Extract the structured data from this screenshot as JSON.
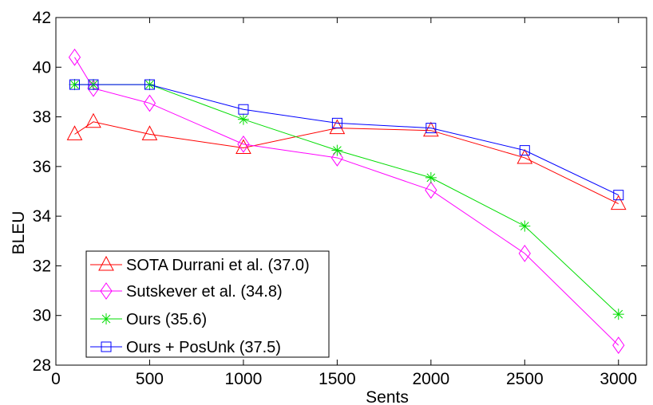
{
  "chart_data": {
    "type": "line",
    "title": "",
    "xlabel": "Sents",
    "ylabel": "BLEU",
    "xlim": [
      0,
      3150
    ],
    "ylim": [
      28,
      42
    ],
    "xticks": [
      0,
      500,
      1000,
      1500,
      2000,
      2500,
      3000
    ],
    "yticks": [
      28,
      30,
      32,
      34,
      36,
      38,
      40,
      42
    ],
    "grid": false,
    "legend_position": "bottom-left",
    "x": [
      100,
      200,
      500,
      1000,
      1500,
      2000,
      2500,
      3000
    ],
    "series": [
      {
        "name": "SOTA Durrani et al. (37.0)",
        "color": "#ff0000",
        "marker": "triangle",
        "values": [
          37.3,
          37.8,
          37.3,
          36.75,
          37.55,
          37.45,
          36.35,
          34.5
        ]
      },
      {
        "name": "Sutskever et al. (34.8)",
        "color": "#ff00ff",
        "marker": "diamond",
        "values": [
          40.4,
          39.15,
          38.55,
          36.9,
          36.35,
          35.05,
          32.5,
          28.8
        ]
      },
      {
        "name": "Ours (35.6)",
        "color": "#00dd00",
        "marker": "asterisk",
        "values": [
          39.3,
          39.3,
          39.3,
          37.9,
          36.65,
          35.55,
          33.6,
          30.05
        ]
      },
      {
        "name": "Ours + PosUnk (37.5)",
        "color": "#0000ff",
        "marker": "square",
        "values": [
          39.3,
          39.3,
          39.3,
          38.3,
          37.75,
          37.55,
          36.65,
          34.85
        ]
      }
    ]
  }
}
